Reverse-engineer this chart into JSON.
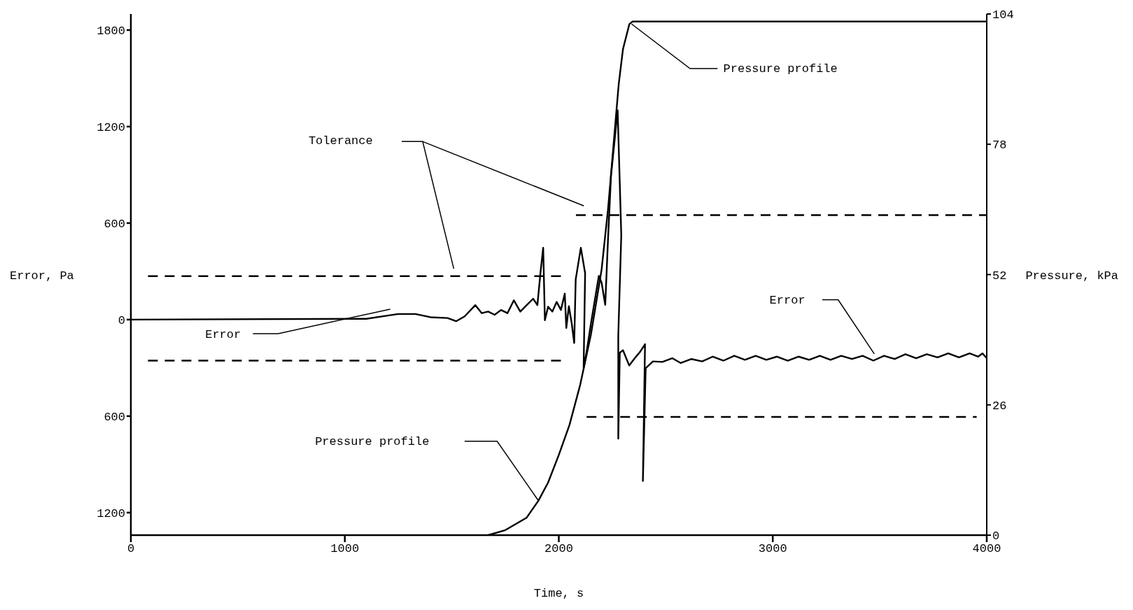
{
  "chart_data": {
    "type": "line",
    "xlabel": "Time, s",
    "ylabel": "Error, Pa",
    "y2label": "Pressure, kPa",
    "xlim": [
      0,
      4000
    ],
    "xticks": [
      0,
      1000,
      2000,
      3000,
      4000
    ],
    "ylim": [
      -1340,
      1900
    ],
    "yticks": [
      {
        "value": -1200,
        "label": "1200"
      },
      {
        "value": -600,
        "label": "600"
      },
      0,
      600,
      1200,
      1800
    ],
    "y2lim": [
      0,
      104
    ],
    "y2ticks": [
      0,
      26,
      52,
      78,
      104
    ],
    "annotations": [
      {
        "text": "Pressure profile",
        "x": 2340,
        "y": 1838
      },
      "Tolerance",
      "Error",
      "Pressure profile",
      "Error"
    ],
    "series": [
      {
        "color": "#000000",
        "line_style": "solid",
        "x": [
          0,
          1100,
          1200,
          1250,
          1330,
          1400,
          1480,
          1520,
          1560,
          1610,
          1640,
          1670,
          1700,
          1730,
          1760,
          1790,
          1820,
          1850,
          1880,
          1900,
          1915,
          1927,
          1935,
          1950,
          1970,
          1990,
          2010,
          2028,
          2035,
          2047,
          2060,
          2072,
          2079,
          2103,
          2123,
          2116,
          2130,
          2150,
          2187,
          2200,
          2217,
          2230,
          2244,
          2275,
          2292,
          2278,
          2278,
          2285,
          2300,
          2315,
          2329,
          2355,
          2380,
          2403,
          2393,
          2406,
          2440,
          2484,
          2530,
          2570,
          2620,
          2670,
          2720,
          2770,
          2820,
          2870,
          2920,
          2970,
          3020,
          3070,
          3120,
          3170,
          3220,
          3270,
          3320,
          3370,
          3420,
          3470,
          3520,
          3570,
          3620,
          3670,
          3720,
          3770,
          3820,
          3870,
          3920,
          3960,
          3980,
          4000
        ],
        "values": [
          0,
          5,
          25,
          35,
          35,
          15,
          10,
          -10,
          20,
          90,
          40,
          50,
          30,
          60,
          40,
          120,
          50,
          90,
          130,
          90,
          300,
          447,
          -4,
          80,
          50,
          110,
          60,
          162,
          -52,
          83,
          -20,
          -145,
          250,
          447,
          289,
          -302,
          -200,
          -26,
          272,
          230,
          92,
          500,
          894,
          1301,
          526,
          -96,
          -740,
          -206,
          -190,
          -240,
          -285,
          -240,
          -200,
          -153,
          -1003,
          -302,
          -260,
          -263,
          -240,
          -270,
          -245,
          -260,
          -230,
          -255,
          -225,
          -250,
          -225,
          -250,
          -230,
          -255,
          -230,
          -250,
          -225,
          -250,
          -225,
          -245,
          -225,
          -255,
          -225,
          -245,
          -215,
          -240,
          -215,
          -235,
          -210,
          -235,
          -210,
          -230,
          -210,
          -240
        ]
      },
      {
        "axis": "y2",
        "color": "#000000",
        "line_style": "solid",
        "x": [
          1670,
          1750,
          1850,
          1905,
          1950,
          2000,
          2050,
          2100,
          2150,
          2200,
          2230,
          2260,
          2280,
          2300,
          2330,
          2345,
          4000
        ],
        "values": [
          0,
          1,
          3.5,
          6.9,
          10.5,
          16,
          22,
          30,
          40,
          53,
          65,
          80,
          90,
          97,
          102,
          102.5,
          102.5
        ]
      },
      {
        "color": "#000000",
        "line_style": "dashed",
        "x": [
          80,
          2015
        ],
        "values": [
          270,
          270
        ]
      },
      {
        "color": "#000000",
        "line_style": "dashed",
        "x": [
          80,
          2015
        ],
        "values": [
          -255,
          -255
        ]
      },
      {
        "color": "#000000",
        "line_style": "dashed",
        "x": [
          2080,
          4000
        ],
        "values": [
          650,
          650
        ]
      },
      {
        "color": "#000000",
        "line_style": "dashed",
        "x": [
          2130,
          3953
        ],
        "values": [
          -605,
          -605
        ]
      }
    ]
  }
}
